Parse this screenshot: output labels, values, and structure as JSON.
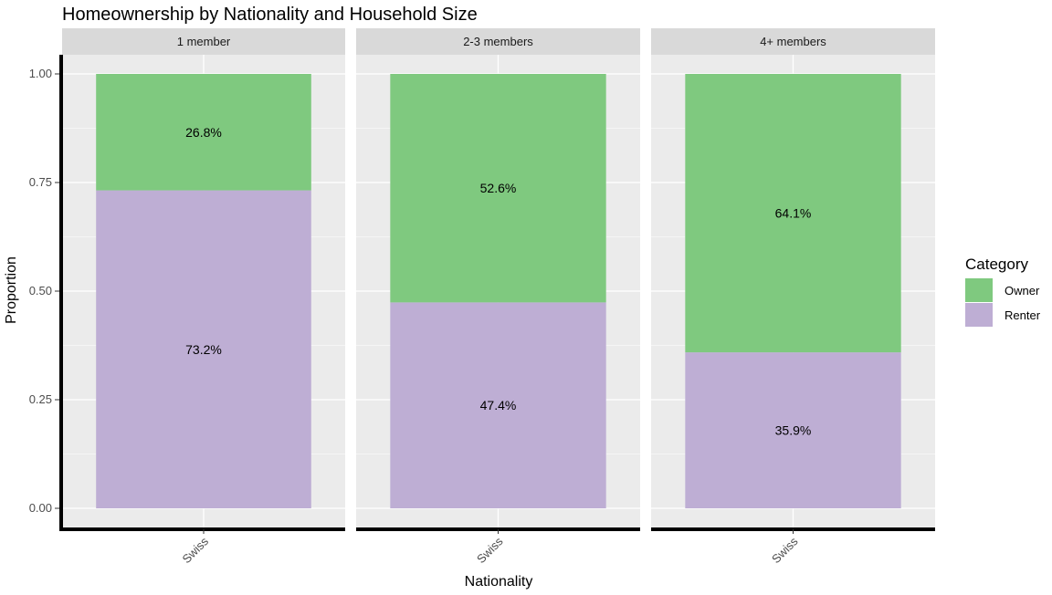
{
  "chart_data": {
    "type": "bar",
    "stacked": true,
    "normalized": true,
    "title": "Homeownership by Nationality and Household Size",
    "xlabel": "Nationality",
    "ylabel": "Proportion",
    "ylim": [
      0,
      1
    ],
    "yticks": [
      "0.00",
      "0.25",
      "0.50",
      "0.75",
      "1.00"
    ],
    "ytick_values": [
      0,
      0.25,
      0.5,
      0.75,
      1.0
    ],
    "legend": {
      "title": "Category",
      "position": "right",
      "items": [
        {
          "label": "Owner",
          "color": "#7fc97f"
        },
        {
          "label": "Renter",
          "color": "#beaed4"
        }
      ]
    },
    "facets": [
      {
        "label": "1 member",
        "category": "Swiss",
        "owner": 0.268,
        "renter": 0.732,
        "owner_label": "26.8%",
        "renter_label": "73.2%"
      },
      {
        "label": "2-3 members",
        "category": "Swiss",
        "owner": 0.526,
        "renter": 0.474,
        "owner_label": "52.6%",
        "renter_label": "47.4%"
      },
      {
        "label": "4+ members",
        "category": "Swiss",
        "owner": 0.641,
        "renter": 0.359,
        "owner_label": "64.1%",
        "renter_label": "35.9%"
      }
    ],
    "grid": true,
    "colors": {
      "panel_bg": "#ebebeb",
      "strip_bg": "#d9d9d9",
      "grid": "#ffffff",
      "axis": "#000000"
    }
  }
}
